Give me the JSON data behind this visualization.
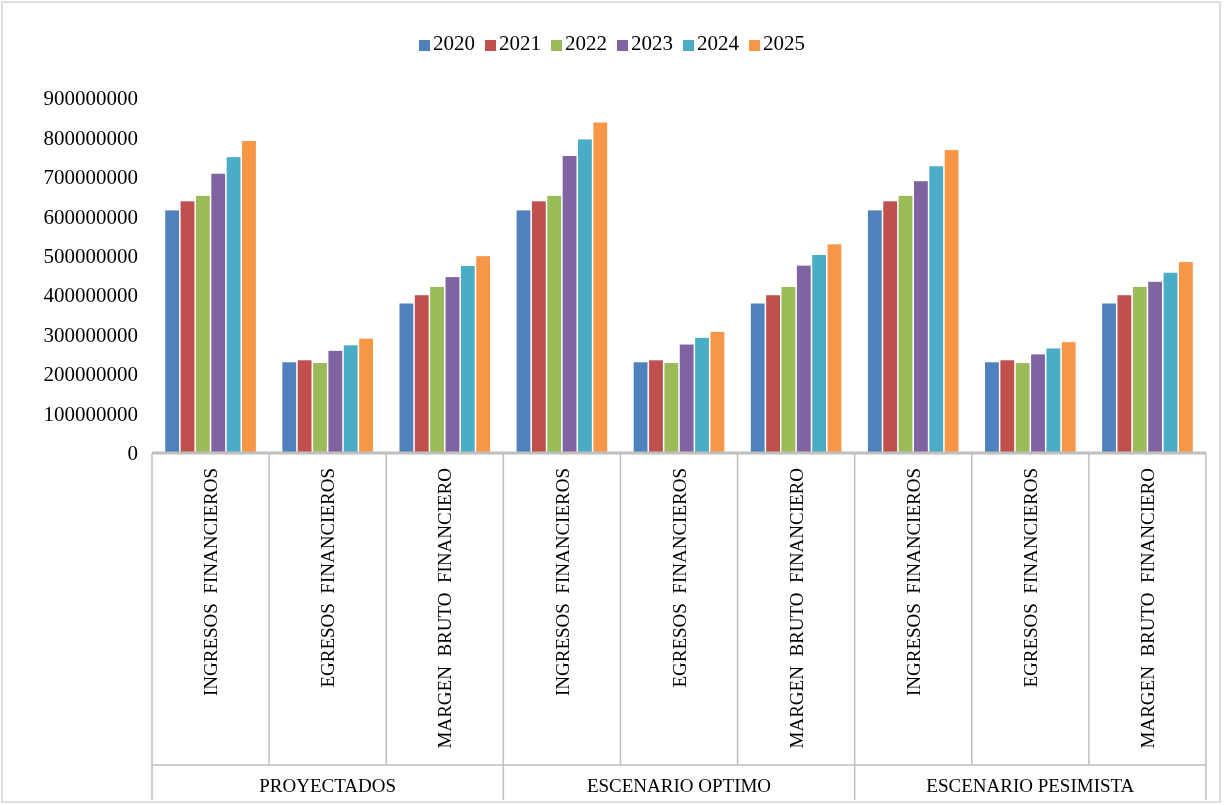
{
  "chart_data": {
    "type": "bar",
    "categories": [
      "INGRESOS FINANCIEROS",
      "EGRESOS FINANCIEROS",
      "MARGEN BRUTO FINANCIERO",
      "INGRESOS FINANCIEROS",
      "EGRESOS FINANCIEROS",
      "MARGEN BRUTO FINANCIERO",
      "INGRESOS FINANCIEROS",
      "EGRESOS FINANCIEROS",
      "MARGEN BRUTO FINANCIERO"
    ],
    "series": [
      {
        "name": "2020",
        "color": "#4f81bd",
        "values": [
          615000000,
          230000000,
          379000000,
          615000000,
          230000000,
          379000000,
          615000000,
          230000000,
          379000000
        ]
      },
      {
        "name": "2021",
        "color": "#c0504d",
        "values": [
          638000000,
          235000000,
          400000000,
          638000000,
          235000000,
          400000000,
          638000000,
          235000000,
          400000000
        ]
      },
      {
        "name": "2022",
        "color": "#9bbb59",
        "values": [
          652000000,
          228000000,
          421000000,
          652000000,
          228000000,
          421000000,
          652000000,
          228000000,
          421000000
        ]
      },
      {
        "name": "2023",
        "color": "#8064a2",
        "values": [
          708000000,
          259000000,
          446000000,
          753000000,
          275000000,
          475000000,
          689000000,
          250000000,
          434000000
        ]
      },
      {
        "name": "2024",
        "color": "#4bacc6",
        "values": [
          750000000,
          273000000,
          474000000,
          795000000,
          292000000,
          502000000,
          727000000,
          265000000,
          457000000
        ]
      },
      {
        "name": "2025",
        "color": "#f79646",
        "values": [
          791000000,
          290000000,
          499000000,
          838000000,
          307000000,
          529000000,
          768000000,
          281000000,
          484000000
        ]
      }
    ],
    "ylim": [
      0,
      900000000
    ],
    "yticks": [
      0,
      100000000,
      200000000,
      300000000,
      400000000,
      500000000,
      600000000,
      700000000,
      800000000,
      900000000
    ],
    "legend": "top",
    "annotations": [
      "PROYECTADOS",
      "ESCENARIO OPTIMO",
      "ESCENARIO PESIMISTA"
    ]
  }
}
